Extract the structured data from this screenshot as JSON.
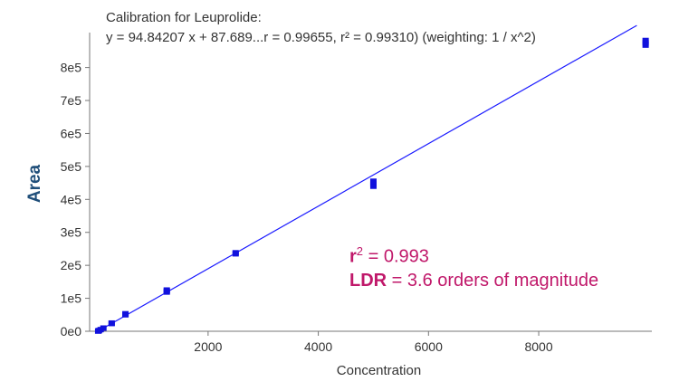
{
  "chart_data": {
    "type": "scatter",
    "title": "Calibration for Leuprolide:",
    "subtitle": "y = 94.84207 x + 87.689...r = 0.99655, r² = 0.99310)  (weighting: 1 / x^2)",
    "xlabel": "Concentration",
    "ylabel": "Area",
    "xlim": [
      -150,
      10020
    ],
    "ylim": [
      0,
      895000
    ],
    "x_ticks": [
      2000,
      4000,
      6000,
      8000
    ],
    "x_tick_labels": [
      "2000",
      "4000",
      "6000",
      "8000"
    ],
    "y_ticks": [
      0,
      100000,
      200000,
      300000,
      400000,
      500000,
      600000,
      700000,
      800000
    ],
    "y_tick_labels": [
      "0e0",
      "1e5",
      "2e5",
      "3e5",
      "4e5",
      "5e5",
      "6e5",
      "7e5",
      "8e5"
    ],
    "grid": false,
    "fit_line": {
      "slope": 94.84207,
      "intercept": 87.689,
      "x_range": [
        0,
        9780
      ],
      "color": "#1a1aff"
    },
    "points": [
      {
        "x": 5,
        "y": 700
      },
      {
        "x": 10,
        "y": 1100
      },
      {
        "x": 20,
        "y": 2100
      },
      {
        "x": 50,
        "y": 5000
      },
      {
        "x": 100,
        "y": 9600
      },
      {
        "x": 250,
        "y": 23500
      },
      {
        "x": 250,
        "y": 24800
      },
      {
        "x": 500,
        "y": 50000
      },
      {
        "x": 500,
        "y": 53000
      },
      {
        "x": 1250,
        "y": 119000
      },
      {
        "x": 1250,
        "y": 122000
      },
      {
        "x": 1250,
        "y": 125000
      },
      {
        "x": 2500,
        "y": 235000
      },
      {
        "x": 2500,
        "y": 238000
      },
      {
        "x": 5000,
        "y": 440000
      },
      {
        "x": 5000,
        "y": 447000
      },
      {
        "x": 5000,
        "y": 455000
      },
      {
        "x": 9940,
        "y": 868000
      },
      {
        "x": 9940,
        "y": 875000
      },
      {
        "x": 9940,
        "y": 882000
      }
    ],
    "point_color": "#1111dd",
    "annotations": {
      "r2_label": "r",
      "r2_sup": "2",
      "r2_value": " = 0.993",
      "ldr_label": "LDR",
      "ldr_value": " = 3.6 orders of magnitude",
      "color": "#c0186a"
    }
  }
}
